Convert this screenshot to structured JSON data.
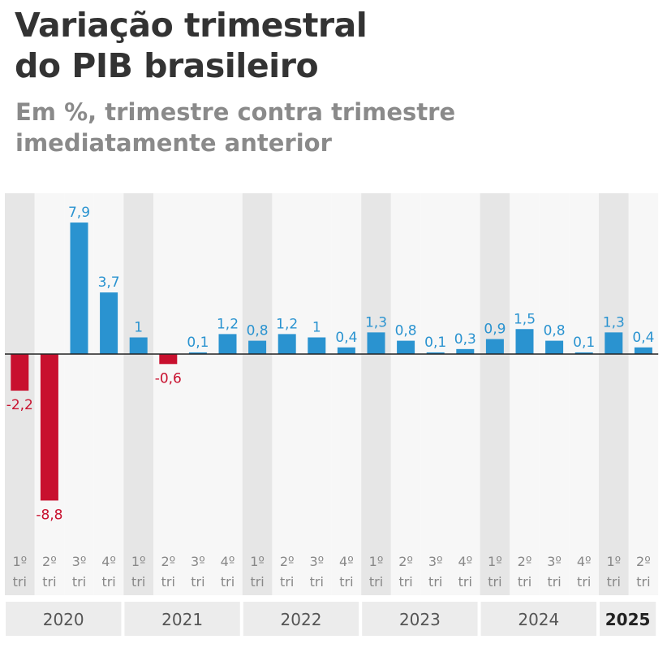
{
  "title_lines": [
    "Variação trimestral",
    "do PIB brasileiro"
  ],
  "subtitle_lines": [
    "Em %, trimestre contra trimestre",
    "imediatamente anterior"
  ],
  "colors": {
    "positive": "#2a93d0",
    "negative": "#c8102e",
    "band_shade": "#e6e6e6",
    "band_light": "#f7f7f7",
    "year_box": "#ececec",
    "text_dark": "#333333",
    "text_muted": "#888888"
  },
  "chart_data": {
    "type": "bar",
    "categories": [
      "1º tri 2020",
      "2º tri 2020",
      "3º tri 2020",
      "4º tri 2020",
      "1º tri 2021",
      "2º tri 2021",
      "3º tri 2021",
      "4º tri 2021",
      "1º tri 2022",
      "2º tri 2022",
      "3º tri 2022",
      "4º tri 2022",
      "1º tri 2023",
      "2º tri 2023",
      "3º tri 2023",
      "4º tri 2023",
      "1º tri 2024",
      "2º tri 2024",
      "3º tri 2024",
      "4º tri 2024",
      "1º tri 2025",
      "2º tri 2025"
    ],
    "quarter_labels": [
      [
        "1º",
        "tri"
      ],
      [
        "2º",
        "tri"
      ],
      [
        "3º",
        "tri"
      ],
      [
        "4º",
        "tri"
      ],
      [
        "1º",
        "tri"
      ],
      [
        "2º",
        "tri"
      ],
      [
        "3º",
        "tri"
      ],
      [
        "4º",
        "tri"
      ],
      [
        "1º",
        "tri"
      ],
      [
        "2º",
        "tri"
      ],
      [
        "3º",
        "tri"
      ],
      [
        "4º",
        "tri"
      ],
      [
        "1º",
        "tri"
      ],
      [
        "2º",
        "tri"
      ],
      [
        "3º",
        "tri"
      ],
      [
        "4º",
        "tri"
      ],
      [
        "1º",
        "tri"
      ],
      [
        "2º",
        "tri"
      ],
      [
        "3º",
        "tri"
      ],
      [
        "4º",
        "tri"
      ],
      [
        "1º",
        "tri"
      ],
      [
        "2º",
        "tri"
      ]
    ],
    "values": [
      -2.2,
      -8.8,
      7.9,
      3.7,
      1.0,
      -0.6,
      0.1,
      1.2,
      0.8,
      1.2,
      1.0,
      0.4,
      1.3,
      0.8,
      0.1,
      0.3,
      0.9,
      1.5,
      0.8,
      0.1,
      1.3,
      0.4
    ],
    "value_labels": [
      "-2,2",
      "-8,8",
      "7,9",
      "3,7",
      "1",
      "-0,6",
      "0,1",
      "1,2",
      "0,8",
      "1,2",
      "1",
      "0,4",
      "1,3",
      "0,8",
      "0,1",
      "0,3",
      "0,9",
      "1,5",
      "0,8",
      "0,1",
      "1,3",
      "0,4"
    ],
    "years": [
      {
        "label": "2020",
        "first_index": 0,
        "count": 4,
        "bold": false
      },
      {
        "label": "2021",
        "first_index": 4,
        "count": 4,
        "bold": false
      },
      {
        "label": "2022",
        "first_index": 8,
        "count": 4,
        "bold": false
      },
      {
        "label": "2023",
        "first_index": 12,
        "count": 4,
        "bold": false
      },
      {
        "label": "2024",
        "first_index": 16,
        "count": 4,
        "bold": false
      },
      {
        "label": "2025",
        "first_index": 20,
        "count": 2,
        "bold": true
      }
    ],
    "xlabel": "",
    "ylabel": "",
    "grid": false,
    "legend": "none"
  }
}
